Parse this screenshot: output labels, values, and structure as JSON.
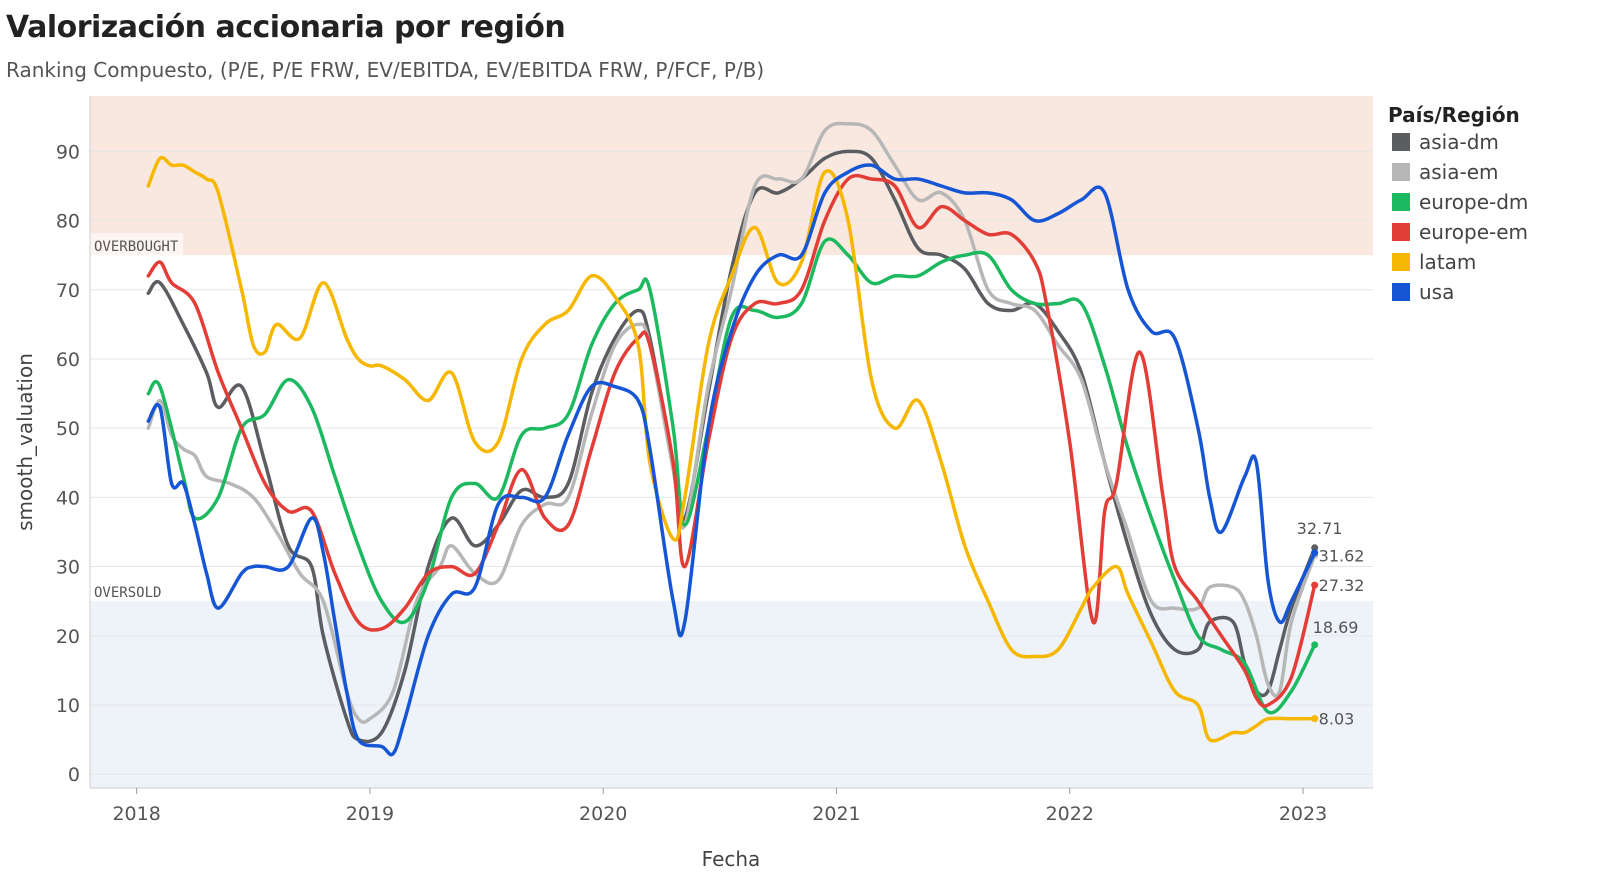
{
  "chart_data": {
    "type": "line",
    "title": "Valorización accionaria por región",
    "subtitle": "Ranking Compuesto, (P/E, P/E FRW, EV/EBITDA, EV/EBITDA FRW, P/FCF, P/B)",
    "xlabel": "Fecha",
    "ylabel": "smooth_valuation",
    "xlim": [
      2017.8,
      2023.3
    ],
    "ylim": [
      -2,
      98
    ],
    "x_ticks": [
      "2018",
      "2019",
      "2020",
      "2021",
      "2022",
      "2023"
    ],
    "y_ticks": [
      "0",
      "10",
      "20",
      "30",
      "40",
      "50",
      "60",
      "70",
      "80",
      "90"
    ],
    "grid": true,
    "legend": {
      "title": "País/Región",
      "position": "right"
    },
    "zones": [
      {
        "label": "OVERBOUGHT",
        "from": 75,
        "to": 98,
        "color": "#f9e8df"
      },
      {
        "label": "OVERSOLD",
        "from": -2,
        "to": 25,
        "color": "#eef2f9"
      }
    ],
    "series": [
      {
        "name": "asia-dm",
        "color": "#5b5d61",
        "end_label": "32.71",
        "x": [
          2018.05,
          2018.1,
          2018.2,
          2018.3,
          2018.35,
          2018.45,
          2018.55,
          2018.65,
          2018.75,
          2018.8,
          2018.9,
          2018.95,
          2019.05,
          2019.15,
          2019.25,
          2019.35,
          2019.45,
          2019.55,
          2019.65,
          2019.75,
          2019.85,
          2019.95,
          2020.05,
          2020.15,
          2020.2,
          2020.3,
          2020.35,
          2020.45,
          2020.55,
          2020.65,
          2020.75,
          2020.85,
          2020.95,
          2021.05,
          2021.15,
          2021.25,
          2021.35,
          2021.45,
          2021.55,
          2021.65,
          2021.75,
          2021.85,
          2021.95,
          2022.05,
          2022.15,
          2022.25,
          2022.35,
          2022.45,
          2022.55,
          2022.6,
          2022.7,
          2022.75,
          2022.8,
          2022.85,
          2022.9,
          2022.95,
          2023.05
        ],
        "y": [
          69.5,
          71,
          65,
          58,
          53,
          56,
          45,
          33,
          30,
          20,
          8,
          5,
          6,
          15,
          30,
          37,
          33,
          36,
          41,
          40,
          42,
          55,
          63,
          67,
          63,
          45,
          37,
          55,
          73,
          84,
          84,
          86,
          89,
          90,
          89,
          83,
          76,
          75,
          73,
          68,
          67,
          68,
          64,
          58,
          45,
          33,
          23,
          18,
          18,
          22,
          22,
          16,
          12,
          12,
          18,
          24,
          32.71
        ]
      },
      {
        "name": "asia-em",
        "color": "#b7b7b7",
        "end_label": "31.62",
        "x": [
          2018.05,
          2018.1,
          2018.15,
          2018.2,
          2018.25,
          2018.3,
          2018.4,
          2018.5,
          2018.6,
          2018.7,
          2018.8,
          2018.9,
          2018.95,
          2019.0,
          2019.1,
          2019.2,
          2019.3,
          2019.35,
          2019.45,
          2019.55,
          2019.65,
          2019.75,
          2019.85,
          2019.95,
          2020.05,
          2020.15,
          2020.2,
          2020.3,
          2020.35,
          2020.45,
          2020.55,
          2020.65,
          2020.75,
          2020.85,
          2020.95,
          2021.05,
          2021.15,
          2021.25,
          2021.35,
          2021.45,
          2021.55,
          2021.65,
          2021.75,
          2021.85,
          2021.95,
          2022.05,
          2022.15,
          2022.25,
          2022.35,
          2022.45,
          2022.55,
          2022.6,
          2022.7,
          2022.75,
          2022.8,
          2022.85,
          2022.9,
          2022.95,
          2023.05
        ],
        "y": [
          50,
          54,
          49,
          47,
          46,
          43,
          42,
          40,
          35,
          29,
          25,
          12,
          8,
          8,
          12,
          25,
          30,
          33,
          29,
          28,
          36,
          39,
          40,
          52,
          62,
          65,
          62,
          44,
          36,
          56,
          70,
          85,
          86,
          86,
          93,
          94,
          93,
          88,
          83,
          84,
          80,
          70,
          68,
          67,
          62,
          57,
          45,
          35,
          25,
          24,
          24,
          27,
          27,
          25,
          20,
          13,
          12,
          22,
          31.62
        ]
      },
      {
        "name": "europe-dm",
        "color": "#1db960",
        "end_label": "18.69",
        "x": [
          2018.05,
          2018.1,
          2018.2,
          2018.25,
          2018.35,
          2018.45,
          2018.55,
          2018.65,
          2018.75,
          2018.85,
          2018.95,
          2019.05,
          2019.15,
          2019.25,
          2019.35,
          2019.45,
          2019.55,
          2019.65,
          2019.75,
          2019.85,
          2019.95,
          2020.05,
          2020.15,
          2020.2,
          2020.3,
          2020.35,
          2020.45,
          2020.55,
          2020.65,
          2020.75,
          2020.85,
          2020.95,
          2021.05,
          2021.15,
          2021.25,
          2021.35,
          2021.45,
          2021.55,
          2021.65,
          2021.75,
          2021.85,
          2021.95,
          2022.05,
          2022.15,
          2022.25,
          2022.35,
          2022.45,
          2022.55,
          2022.65,
          2022.75,
          2022.85,
          2022.95,
          2023.05
        ],
        "y": [
          55,
          56,
          43,
          37,
          40,
          50,
          52,
          57,
          53,
          43,
          33,
          25,
          22,
          28,
          40,
          42,
          40,
          49,
          50,
          52,
          62,
          68,
          70,
          70,
          50,
          36,
          50,
          66,
          67,
          66,
          68,
          77,
          75,
          71,
          72,
          72,
          74,
          75,
          75,
          70,
          68,
          68,
          68,
          59,
          47,
          37,
          28,
          20,
          18,
          16,
          9,
          12,
          18.69
        ]
      },
      {
        "name": "europe-em",
        "color": "#e33d37",
        "end_label": "27.32",
        "x": [
          2018.05,
          2018.1,
          2018.15,
          2018.25,
          2018.35,
          2018.45,
          2018.55,
          2018.65,
          2018.75,
          2018.85,
          2018.95,
          2019.05,
          2019.15,
          2019.25,
          2019.35,
          2019.45,
          2019.55,
          2019.65,
          2019.75,
          2019.85,
          2019.95,
          2020.05,
          2020.15,
          2020.2,
          2020.3,
          2020.35,
          2020.45,
          2020.55,
          2020.65,
          2020.75,
          2020.85,
          2020.95,
          2021.05,
          2021.15,
          2021.25,
          2021.35,
          2021.45,
          2021.55,
          2021.65,
          2021.75,
          2021.85,
          2021.9,
          2022.0,
          2022.1,
          2022.15,
          2022.2,
          2022.3,
          2022.4,
          2022.45,
          2022.55,
          2022.65,
          2022.75,
          2022.8,
          2022.85,
          2022.95,
          2023.05
        ],
        "y": [
          72,
          74,
          71,
          68,
          58,
          50,
          42,
          38,
          38,
          29,
          22,
          21,
          24,
          29,
          30,
          29,
          36,
          44,
          37,
          36,
          47,
          58,
          63,
          62,
          45,
          30,
          48,
          63,
          68,
          68,
          70,
          80,
          86,
          86,
          85,
          79,
          82,
          80,
          78,
          78,
          74,
          68,
          48,
          22,
          38,
          42,
          61,
          40,
          30,
          25,
          20,
          15,
          11,
          10,
          14,
          27.32
        ]
      },
      {
        "name": "latam",
        "color": "#f6b700",
        "end_label": "8.03",
        "x": [
          2018.05,
          2018.1,
          2018.15,
          2018.2,
          2018.25,
          2018.3,
          2018.35,
          2018.45,
          2018.5,
          2018.55,
          2018.6,
          2018.7,
          2018.8,
          2018.9,
          2018.95,
          2019.0,
          2019.05,
          2019.15,
          2019.25,
          2019.35,
          2019.45,
          2019.55,
          2019.65,
          2019.75,
          2019.85,
          2019.95,
          2020.05,
          2020.15,
          2020.2,
          2020.3,
          2020.35,
          2020.45,
          2020.55,
          2020.65,
          2020.75,
          2020.85,
          2020.95,
          2021.05,
          2021.15,
          2021.25,
          2021.35,
          2021.45,
          2021.55,
          2021.65,
          2021.75,
          2021.85,
          2021.95,
          2022.05,
          2022.1,
          2022.2,
          2022.25,
          2022.35,
          2022.45,
          2022.55,
          2022.6,
          2022.7,
          2022.75,
          2022.8,
          2022.85,
          2022.95,
          2023.05
        ],
        "y": [
          85,
          89,
          88,
          88,
          87,
          86,
          84,
          70,
          62,
          61,
          65,
          63,
          71,
          63,
          60,
          59,
          59,
          57,
          54,
          58,
          48,
          48,
          60,
          65,
          67,
          72,
          69,
          62,
          45,
          34,
          40,
          62,
          72,
          79,
          71,
          74,
          87,
          80,
          57,
          50,
          54,
          45,
          33,
          25,
          18,
          17,
          18,
          24,
          27,
          30,
          26,
          19,
          12,
          10,
          5,
          6,
          6,
          7,
          8,
          8,
          8.03
        ]
      },
      {
        "name": "usa",
        "color": "#1656d4",
        "end_label": "",
        "x": [
          2018.05,
          2018.1,
          2018.15,
          2018.2,
          2018.25,
          2018.3,
          2018.35,
          2018.45,
          2018.5,
          2018.55,
          2018.65,
          2018.75,
          2018.8,
          2018.85,
          2018.9,
          2018.95,
          2019.05,
          2019.1,
          2019.15,
          2019.25,
          2019.35,
          2019.45,
          2019.55,
          2019.65,
          2019.75,
          2019.85,
          2019.95,
          2020.05,
          2020.15,
          2020.2,
          2020.3,
          2020.35,
          2020.45,
          2020.55,
          2020.65,
          2020.75,
          2020.85,
          2020.95,
          2021.05,
          2021.15,
          2021.25,
          2021.35,
          2021.45,
          2021.55,
          2021.65,
          2021.75,
          2021.85,
          2021.95,
          2022.05,
          2022.15,
          2022.25,
          2022.35,
          2022.45,
          2022.55,
          2022.6,
          2022.65,
          2022.75,
          2022.8,
          2022.85,
          2022.9,
          2022.95,
          2023.05
        ],
        "y": [
          51,
          53,
          42,
          42,
          36,
          29,
          24,
          29,
          30,
          30,
          30,
          37,
          32,
          22,
          12,
          5,
          4,
          3,
          8,
          20,
          26,
          27,
          39,
          40,
          40,
          49,
          56,
          56,
          54,
          47,
          25,
          22,
          50,
          64,
          72,
          75,
          75,
          84,
          87,
          88,
          86,
          86,
          85,
          84,
          84,
          83,
          80,
          81,
          83,
          84,
          70,
          64,
          63,
          50,
          40,
          35,
          43,
          45,
          28,
          22,
          25,
          32
        ]
      }
    ]
  }
}
